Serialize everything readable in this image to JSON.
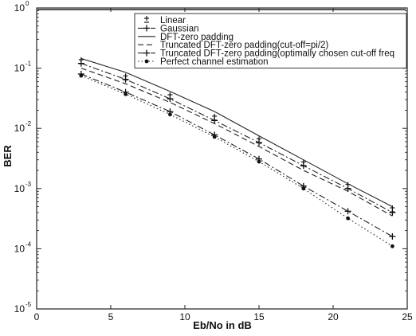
{
  "chart_data": {
    "type": "line",
    "x_scale": "linear",
    "y_scale": "log",
    "xlim": [
      0,
      25
    ],
    "ylim": [
      1e-05,
      1
    ],
    "x_ticks": [
      0,
      5,
      10,
      15,
      20,
      25
    ],
    "y_ticks": [
      {
        "value": 1,
        "base": "10",
        "exp": "0"
      },
      {
        "value": 0.1,
        "base": "10",
        "exp": "-1"
      },
      {
        "value": 0.01,
        "base": "10",
        "exp": "-2"
      },
      {
        "value": 0.001,
        "base": "10",
        "exp": "-3"
      },
      {
        "value": 0.0001,
        "base": "10",
        "exp": "-4"
      },
      {
        "value": 1e-05,
        "base": "10",
        "exp": "-5"
      }
    ],
    "xlabel": "Eb/No in dB",
    "ylabel": "BER",
    "grid": false,
    "legend_position": "top-right",
    "series": [
      {
        "name": "Linear",
        "marker": "plus-minus",
        "line": "none",
        "x": [
          3,
          6,
          9,
          12,
          15,
          18,
          21,
          24
        ],
        "y": [
          0.13,
          0.07,
          0.034,
          0.015,
          0.0063,
          0.0026,
          0.0011,
          0.00045
        ]
      },
      {
        "name": "Gaussian",
        "marker": "plus",
        "line": "dashdot",
        "x": [
          3,
          6,
          9,
          12,
          15,
          18,
          21,
          24
        ],
        "y": [
          0.12,
          0.065,
          0.031,
          0.0135,
          0.0058,
          0.0024,
          0.001,
          0.0004
        ]
      },
      {
        "name": "DFT-zero padding",
        "marker": "none",
        "line": "solid",
        "x": [
          3,
          6,
          9,
          12,
          15,
          18,
          21,
          24
        ],
        "y": [
          0.145,
          0.085,
          0.041,
          0.019,
          0.0075,
          0.003,
          0.0012,
          0.0005
        ]
      },
      {
        "name": "Truncated DFT-zero padding(cut-off=pi/2)",
        "marker": "none",
        "line": "dashed",
        "x": [
          3,
          6,
          9,
          12,
          15,
          18,
          21,
          24
        ],
        "y": [
          0.1,
          0.055,
          0.027,
          0.012,
          0.005,
          0.002,
          0.0009,
          0.00035
        ]
      },
      {
        "name": "Truncated DFT-zero padding(optimally chosen cut-off freq",
        "marker": "plus",
        "line": "dashdot",
        "x": [
          3,
          6,
          9,
          12,
          15,
          18,
          21,
          24
        ],
        "y": [
          0.08,
          0.04,
          0.019,
          0.0078,
          0.0031,
          0.0011,
          0.00042,
          0.00016
        ]
      },
      {
        "name": "Perfect channel estimation",
        "marker": "dot",
        "line": "dotted",
        "x": [
          3,
          6,
          9,
          12,
          15,
          18,
          21,
          24
        ],
        "y": [
          0.075,
          0.037,
          0.017,
          0.0072,
          0.0028,
          0.001,
          0.00032,
          0.00011
        ]
      }
    ]
  }
}
